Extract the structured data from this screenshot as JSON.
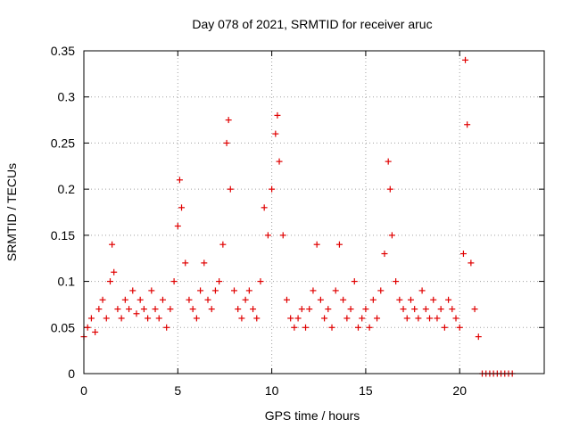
{
  "chart_data": {
    "type": "scatter",
    "title": "Day 078 of 2021, SRMTID for receiver aruc",
    "xlabel": "GPS time / hours",
    "ylabel": "SRMTID / TECUs",
    "xlim": [
      0,
      24.5
    ],
    "ylim": [
      0,
      0.35
    ],
    "x_ticks": [
      0,
      5,
      10,
      15,
      20
    ],
    "x_tick_labels": [
      "0",
      "5",
      "10",
      "15",
      "20"
    ],
    "y_ticks": [
      0,
      0.05,
      0.1,
      0.15,
      0.2,
      0.25,
      0.3,
      0.35
    ],
    "y_tick_labels": [
      "0",
      "0.05",
      "0.1",
      "0.15",
      "0.2",
      "0.25",
      "0.3",
      "0.35"
    ],
    "grid": true,
    "marker": "+",
    "color": "#e00000",
    "series": [
      {
        "name": "SRMTID",
        "x": [
          0.0,
          0.2,
          0.4,
          0.6,
          0.8,
          1.0,
          1.2,
          1.4,
          1.5,
          1.6,
          1.8,
          2.0,
          2.2,
          2.4,
          2.6,
          2.8,
          3.0,
          3.2,
          3.4,
          3.6,
          3.8,
          4.0,
          4.2,
          4.4,
          4.6,
          4.8,
          5.0,
          5.1,
          5.2,
          5.4,
          5.6,
          5.8,
          6.0,
          6.2,
          6.4,
          6.6,
          6.8,
          7.0,
          7.2,
          7.4,
          7.6,
          7.7,
          7.8,
          8.0,
          8.2,
          8.4,
          8.6,
          8.8,
          9.0,
          9.2,
          9.4,
          9.6,
          9.8,
          10.0,
          10.2,
          10.3,
          10.4,
          10.6,
          10.8,
          11.0,
          11.2,
          11.4,
          11.6,
          11.8,
          12.0,
          12.2,
          12.4,
          12.6,
          12.8,
          13.0,
          13.2,
          13.4,
          13.6,
          13.8,
          14.0,
          14.2,
          14.4,
          14.6,
          14.8,
          15.0,
          15.2,
          15.4,
          15.6,
          15.8,
          16.0,
          16.2,
          16.3,
          16.4,
          16.6,
          16.8,
          17.0,
          17.2,
          17.4,
          17.6,
          17.8,
          18.0,
          18.2,
          18.4,
          18.6,
          18.8,
          19.0,
          19.2,
          19.4,
          19.6,
          19.8,
          20.0,
          20.2,
          20.3,
          20.4,
          20.6,
          20.8,
          21.0,
          21.2,
          21.4,
          21.6,
          21.8,
          22.0,
          22.2,
          22.4,
          22.6,
          22.8
        ],
        "y": [
          0.04,
          0.05,
          0.06,
          0.045,
          0.07,
          0.08,
          0.06,
          0.1,
          0.14,
          0.11,
          0.07,
          0.06,
          0.08,
          0.07,
          0.09,
          0.065,
          0.08,
          0.07,
          0.06,
          0.09,
          0.07,
          0.06,
          0.08,
          0.05,
          0.07,
          0.1,
          0.16,
          0.21,
          0.18,
          0.12,
          0.08,
          0.07,
          0.06,
          0.09,
          0.12,
          0.08,
          0.07,
          0.09,
          0.1,
          0.14,
          0.25,
          0.275,
          0.2,
          0.09,
          0.07,
          0.06,
          0.08,
          0.09,
          0.07,
          0.06,
          0.1,
          0.18,
          0.15,
          0.2,
          0.26,
          0.28,
          0.23,
          0.15,
          0.08,
          0.06,
          0.05,
          0.06,
          0.07,
          0.05,
          0.07,
          0.09,
          0.14,
          0.08,
          0.06,
          0.07,
          0.05,
          0.09,
          0.14,
          0.08,
          0.06,
          0.07,
          0.1,
          0.05,
          0.06,
          0.07,
          0.05,
          0.08,
          0.06,
          0.09,
          0.13,
          0.23,
          0.2,
          0.15,
          0.1,
          0.08,
          0.07,
          0.06,
          0.08,
          0.07,
          0.06,
          0.09,
          0.07,
          0.06,
          0.08,
          0.06,
          0.07,
          0.05,
          0.08,
          0.07,
          0.06,
          0.05,
          0.13,
          0.34,
          0.27,
          0.12,
          0.07,
          0.04,
          0.0,
          0.0,
          0.0,
          0.0,
          0.0,
          0.0,
          0.0,
          0.0,
          0.0
        ]
      }
    ]
  }
}
